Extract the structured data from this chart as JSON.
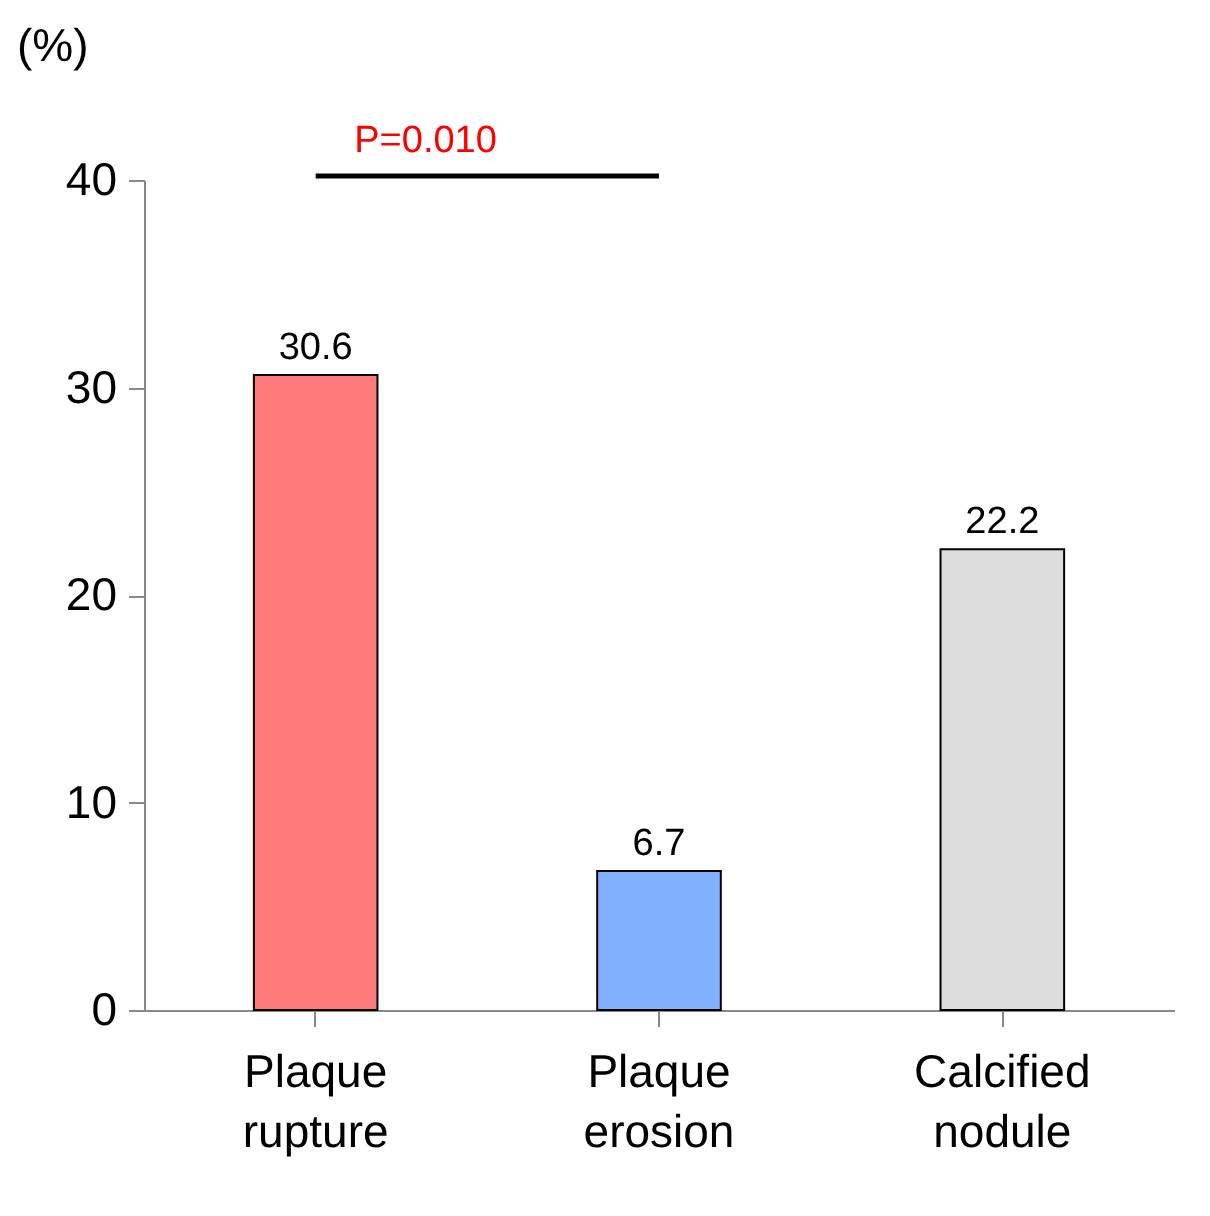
{
  "chart_data": {
    "type": "bar",
    "ylabel": "(%)",
    "categories": [
      "Plaque rupture",
      "Plaque erosion",
      "Calcified nodule"
    ],
    "values": [
      30.6,
      6.7,
      22.2
    ],
    "colors": [
      "#ff7b7b",
      "#80b0ff",
      "#dcdcdc"
    ],
    "ylim": [
      0,
      40
    ],
    "yticks": [
      0,
      10,
      20,
      30,
      40
    ],
    "data_labels": true,
    "grid": false,
    "annotations": [
      "P=0.010"
    ]
  }
}
